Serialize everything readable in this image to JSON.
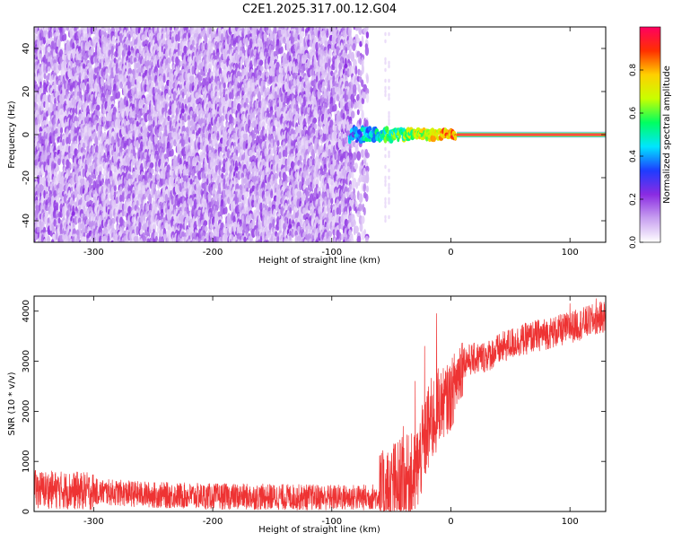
{
  "title": "C2E1.2025.317.00.12.G04",
  "chart_data": [
    {
      "type": "heatmap",
      "name": "spectrogram",
      "xlabel": "Height of straight line (km)",
      "ylabel": "Frequency (Hz)",
      "xlim": [
        -350,
        130
      ],
      "ylim": [
        -50,
        50
      ],
      "x_ticks": [
        -300,
        -200,
        -100,
        0,
        100
      ],
      "x_tick_labels": [
        "-300",
        "-200",
        "-100",
        "0",
        "100"
      ],
      "y_ticks": [
        -40,
        -20,
        0,
        20,
        40
      ],
      "y_tick_labels": [
        "-40",
        "-20",
        "0",
        "20",
        "40"
      ],
      "noise_region_x": [
        -350,
        -70
      ],
      "transition_region_x": [
        -85,
        5
      ],
      "signal_line_x": [
        5,
        130
      ],
      "signal_frequency": 0,
      "colorbar": {
        "label": "Normalized spectral amplitude",
        "range": [
          0,
          1
        ],
        "ticks": [
          0,
          0.2,
          0.4,
          0.6,
          0.8
        ],
        "tick_labels": [
          "0.0",
          "0.2",
          "0.4",
          "0.6",
          "0.8"
        ],
        "colormap": [
          "#ffffff",
          "#c8a0f0",
          "#8a2be2",
          "#1e3cff",
          "#00e5ff",
          "#00ff60",
          "#c8ff00",
          "#ffd000",
          "#ff3000",
          "#ff0060"
        ]
      }
    },
    {
      "type": "line",
      "name": "snr",
      "xlabel": "Height of straight line (km)",
      "ylabel": "SNR (10 * v/v)",
      "xlim": [
        -350,
        130
      ],
      "ylim": [
        0,
        4300
      ],
      "x_ticks": [
        -300,
        -200,
        -100,
        0,
        100
      ],
      "x_tick_labels": [
        "-300",
        "-200",
        "-100",
        "0",
        "100"
      ],
      "y_ticks": [
        0,
        1000,
        2000,
        3000,
        4000
      ],
      "y_tick_labels": [
        "0",
        "1000",
        "2000",
        "3000",
        "4000"
      ],
      "color": "#ee3333",
      "trend_points": [
        {
          "x": -350,
          "y": 450
        },
        {
          "x": -300,
          "y": 400
        },
        {
          "x": -250,
          "y": 330
        },
        {
          "x": -200,
          "y": 300
        },
        {
          "x": -150,
          "y": 290
        },
        {
          "x": -100,
          "y": 280
        },
        {
          "x": -70,
          "y": 280
        },
        {
          "x": -55,
          "y": 330
        },
        {
          "x": -45,
          "y": 550
        },
        {
          "x": -30,
          "y": 700
        },
        {
          "x": -20,
          "y": 1600
        },
        {
          "x": -10,
          "y": 2100
        },
        {
          "x": 0,
          "y": 2300
        },
        {
          "x": 10,
          "y": 3000
        },
        {
          "x": 30,
          "y": 3100
        },
        {
          "x": 50,
          "y": 3350
        },
        {
          "x": 70,
          "y": 3500
        },
        {
          "x": 90,
          "y": 3600
        },
        {
          "x": 110,
          "y": 3750
        },
        {
          "x": 130,
          "y": 3900
        }
      ],
      "spikes": [
        {
          "x": -12,
          "y": 3950
        },
        {
          "x": -8,
          "y": 1950
        },
        {
          "x": -22,
          "y": 3300
        },
        {
          "x": -30,
          "y": 2600
        },
        {
          "x": -40,
          "y": 1700
        },
        {
          "x": -48,
          "y": 1350
        },
        {
          "x": 122,
          "y": 4250
        },
        {
          "x": 100,
          "y": 4150
        }
      ]
    }
  ]
}
